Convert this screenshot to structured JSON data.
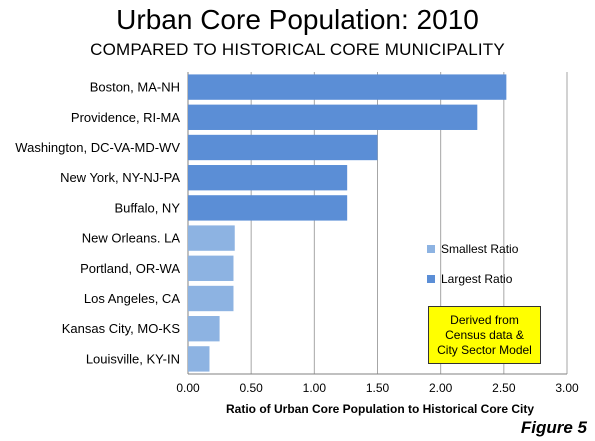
{
  "chart_data": {
    "type": "bar",
    "orientation": "horizontal",
    "title": "Urban Core Population: 2010",
    "subtitle": "COMPARED TO HISTORICAL CORE MUNICIPALITY",
    "xlabel": "Ratio of Urban Core Population to Historical Core City",
    "ylabel": "",
    "xlim": [
      0,
      3
    ],
    "xticks": [
      "0.00",
      "0.50",
      "1.00",
      "1.50",
      "2.00",
      "2.50",
      "3.00"
    ],
    "grid": true,
    "categories": [
      "Boston, MA-NH",
      "Providence, RI-MA",
      "Washington, DC-VA-MD-WV",
      "New York, NY-NJ-PA",
      "Buffalo, NY",
      "New Orleans. LA",
      "Portland, OR-WA",
      "Los Angeles, CA",
      "Kansas City, MO-KS",
      "Louisville, KY-IN"
    ],
    "values": [
      2.52,
      2.29,
      1.5,
      1.26,
      1.26,
      0.37,
      0.36,
      0.36,
      0.25,
      0.17
    ],
    "groups": [
      "Largest Ratio",
      "Largest Ratio",
      "Largest Ratio",
      "Largest Ratio",
      "Largest Ratio",
      "Smallest Ratio",
      "Smallest Ratio",
      "Smallest Ratio",
      "Smallest Ratio",
      "Smallest Ratio"
    ],
    "legend": {
      "placement": "right",
      "entries": [
        {
          "name": "Smallest Ratio",
          "color": "#8db3e2"
        },
        {
          "name": "Largest Ratio",
          "color": "#5b8ed6"
        }
      ]
    },
    "annotation": [
      "Derived from",
      "Census data &",
      "City Sector Model"
    ]
  },
  "figure_label": "Figure 5",
  "colors": {
    "largest": "#5b8ed6",
    "smallest": "#8db3e2",
    "grid": "#a6a6a6",
    "note_bg": "#ffff00"
  }
}
